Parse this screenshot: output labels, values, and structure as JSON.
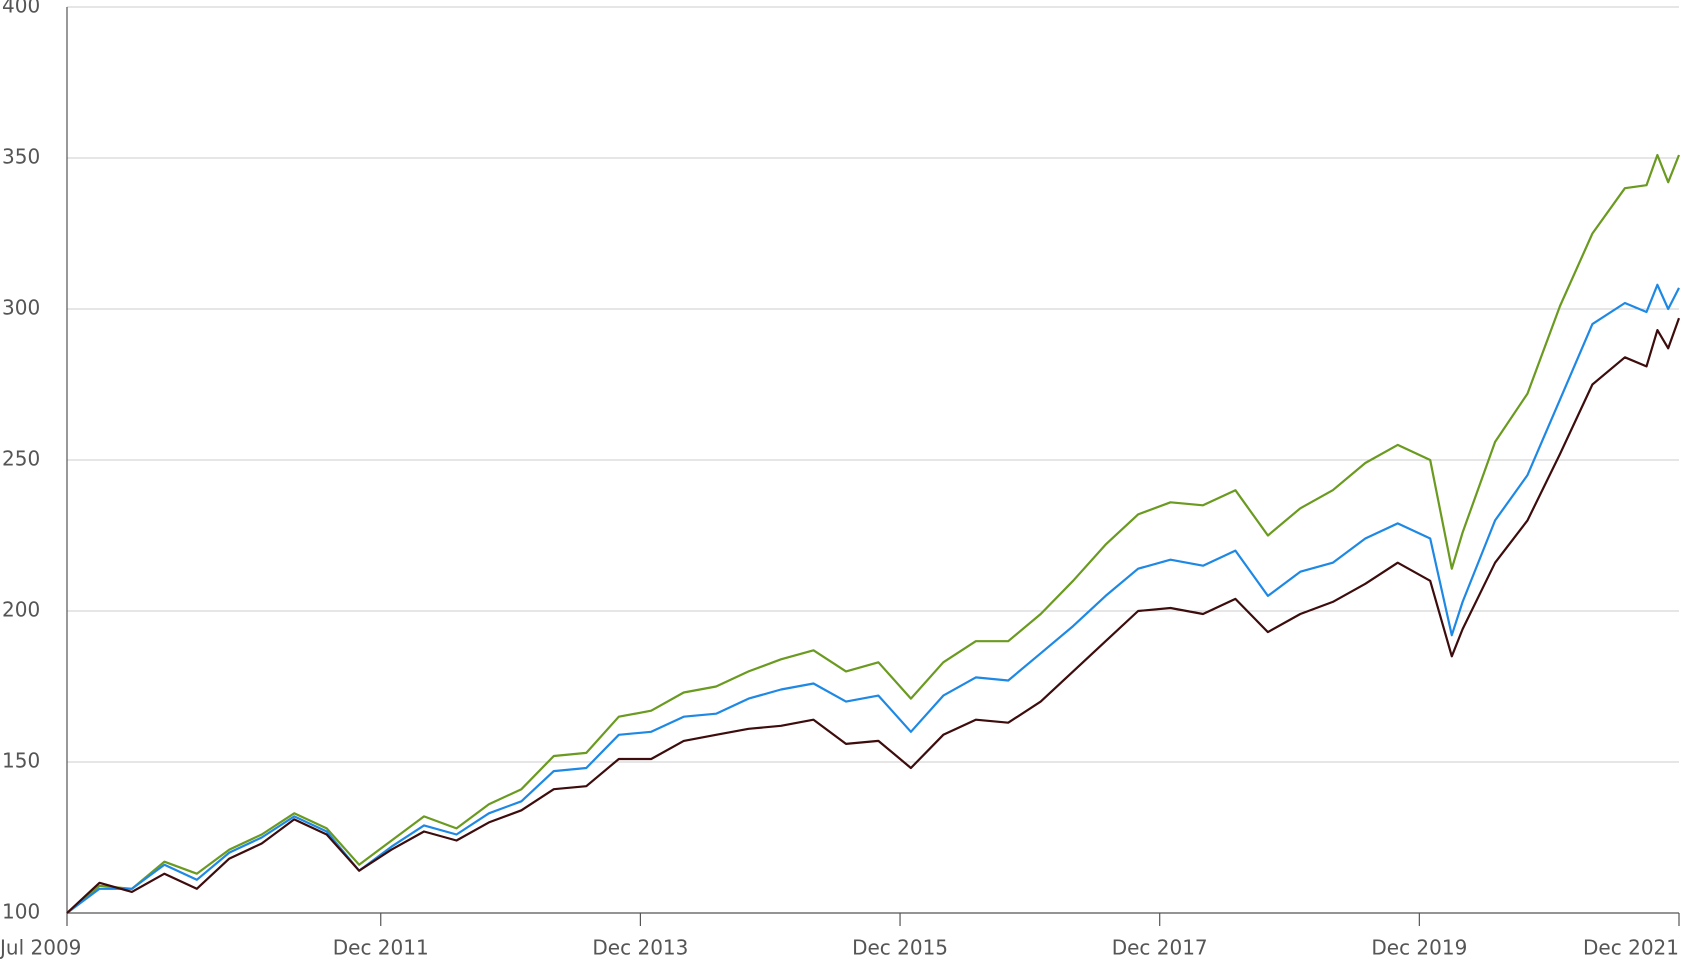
{
  "chart_data": {
    "type": "line",
    "x": [
      "Jul 2009",
      "Oct 2009",
      "Jan 2010",
      "Apr 2010",
      "Jul 2010",
      "Oct 2010",
      "Jan 2011",
      "Apr 2011",
      "Jul 2011",
      "Oct 2011",
      "Jan 2012",
      "Apr 2012",
      "Jul 2012",
      "Oct 2012",
      "Jan 2013",
      "Apr 2013",
      "Jul 2013",
      "Oct 2013",
      "Jan 2014",
      "Apr 2014",
      "Jul 2014",
      "Oct 2014",
      "Jan 2015",
      "Apr 2015",
      "Jul 2015",
      "Oct 2015",
      "Jan 2016",
      "Apr 2016",
      "Jul 2016",
      "Oct 2016",
      "Jan 2017",
      "Apr 2017",
      "Jul 2017",
      "Oct 2017",
      "Jan 2018",
      "Apr 2018",
      "Jul 2018",
      "Oct 2018",
      "Jan 2019",
      "Apr 2019",
      "Jul 2019",
      "Oct 2019",
      "Jan 2020",
      "Mar 2020",
      "Apr 2020",
      "Jul 2020",
      "Oct 2020",
      "Jan 2021",
      "Apr 2021",
      "Jul 2021",
      "Sep 2021",
      "Oct 2021",
      "Nov 2021",
      "Dec 2021"
    ],
    "series": [
      {
        "color": "#6a9a1f",
        "values": [
          100,
          109,
          108,
          117,
          113,
          121,
          126,
          133,
          128,
          116,
          124,
          132,
          128,
          136,
          141,
          152,
          153,
          165,
          167,
          173,
          175,
          180,
          184,
          187,
          180,
          183,
          171,
          183,
          190,
          190,
          199,
          210,
          222,
          232,
          236,
          235,
          240,
          225,
          234,
          240,
          249,
          255,
          250,
          214,
          226,
          256,
          272,
          301,
          325,
          340,
          341,
          351,
          342,
          351
        ]
      },
      {
        "color": "#1e88e5",
        "values": [
          100,
          108,
          108,
          116,
          111,
          120,
          125,
          132,
          127,
          114,
          122,
          129,
          126,
          133,
          137,
          147,
          148,
          159,
          160,
          165,
          166,
          171,
          174,
          176,
          170,
          172,
          160,
          172,
          178,
          177,
          186,
          195,
          205,
          214,
          217,
          215,
          220,
          205,
          213,
          216,
          224,
          229,
          224,
          192,
          203,
          230,
          245,
          270,
          295,
          302,
          299,
          308,
          300,
          307
        ]
      },
      {
        "color": "#3d0c0c",
        "values": [
          100,
          110,
          107,
          113,
          108,
          118,
          123,
          131,
          126,
          114,
          121,
          127,
          124,
          130,
          134,
          141,
          142,
          151,
          151,
          157,
          159,
          161,
          162,
          164,
          156,
          157,
          148,
          159,
          164,
          163,
          170,
          180,
          190,
          200,
          201,
          199,
          204,
          193,
          199,
          203,
          209,
          216,
          210,
          185,
          194,
          216,
          230,
          252,
          275,
          284,
          281,
          293,
          287,
          297
        ]
      }
    ],
    "xlim": [
      "Jul 2009",
      "Dec 2021"
    ],
    "xticks": [
      "Jul 2009",
      "Dec 2011",
      "Dec 2013",
      "Dec 2015",
      "Dec 2017",
      "Dec 2019",
      "Dec 2021"
    ],
    "ylim": [
      100,
      400
    ],
    "yticks": [
      100,
      150,
      200,
      250,
      300,
      350,
      400
    ],
    "grid": true
  }
}
